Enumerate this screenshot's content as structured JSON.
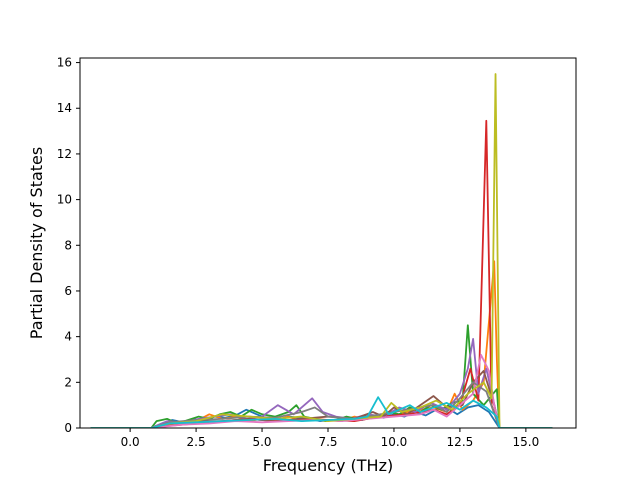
{
  "chart_data": {
    "type": "line",
    "title": "",
    "xlabel": "Frequency (THz)",
    "ylabel": "Partial Density of States",
    "xlim": [
      -1.9,
      16.9
    ],
    "ylim": [
      0,
      16.2
    ],
    "xticks": [
      0.0,
      2.5,
      5.0,
      7.5,
      10.0,
      12.5,
      15.0
    ],
    "xtick_labels": [
      "0.0",
      "2.5",
      "5.0",
      "7.5",
      "10.0",
      "12.5",
      "15.0"
    ],
    "yticks": [
      0,
      2,
      4,
      6,
      8,
      10,
      12,
      14,
      16
    ],
    "ytick_labels": [
      "0",
      "2",
      "4",
      "6",
      "8",
      "10",
      "12",
      "14",
      "16"
    ],
    "grid": false,
    "legend": "none",
    "series": [
      {
        "color": "#1f77b4",
        "x": [
          -1.5,
          0.8,
          1.2,
          1.6,
          2.0,
          2.4,
          2.8,
          3.2,
          3.6,
          4.0,
          4.4,
          4.8,
          5.2,
          5.6,
          6.0,
          6.4,
          6.8,
          7.2,
          7.6,
          8.0,
          8.4,
          8.8,
          9.2,
          9.6,
          10.0,
          10.4,
          10.8,
          11.2,
          11.6,
          12.0,
          12.4,
          12.8,
          13.2,
          13.6,
          14.0,
          16.0
        ],
        "y": [
          0,
          0,
          0.2,
          0.35,
          0.25,
          0.4,
          0.3,
          0.5,
          0.45,
          0.55,
          0.8,
          0.6,
          0.4,
          0.3,
          0.5,
          0.45,
          0.4,
          0.3,
          0.35,
          0.3,
          0.4,
          0.35,
          0.5,
          0.45,
          0.6,
          0.5,
          0.7,
          0.55,
          0.8,
          0.9,
          0.6,
          0.9,
          1.0,
          0.7,
          0,
          0
        ]
      },
      {
        "color": "#ff7f0e",
        "x": [
          -1.5,
          0.8,
          1.5,
          2.0,
          2.5,
          3.0,
          3.5,
          4.0,
          4.5,
          5.0,
          5.5,
          6.0,
          6.5,
          7.0,
          7.5,
          8.0,
          8.5,
          9.0,
          9.5,
          10.0,
          10.5,
          11.0,
          11.5,
          12.0,
          12.3,
          12.6,
          13.0,
          13.4,
          13.8,
          13.9,
          14.0,
          16.0
        ],
        "y": [
          0,
          0,
          0.15,
          0.2,
          0.3,
          0.6,
          0.4,
          0.5,
          0.3,
          0.4,
          0.35,
          0.5,
          0.3,
          0.4,
          0.35,
          0.3,
          0.5,
          0.4,
          0.6,
          0.5,
          0.7,
          0.8,
          0.9,
          0.7,
          1.5,
          0.8,
          1.2,
          2.0,
          7.3,
          3.0,
          0,
          0
        ]
      },
      {
        "color": "#2ca02c",
        "x": [
          -1.5,
          0.8,
          1.0,
          1.4,
          1.8,
          2.2,
          2.6,
          3.0,
          3.4,
          3.8,
          4.2,
          4.6,
          5.0,
          5.5,
          6.0,
          6.3,
          6.6,
          7.0,
          7.4,
          7.8,
          8.2,
          8.6,
          9.0,
          9.4,
          9.8,
          10.2,
          10.6,
          11.0,
          11.4,
          11.8,
          12.2,
          12.6,
          12.8,
          13.0,
          13.4,
          13.9,
          14.0,
          16.0
        ],
        "y": [
          0,
          0,
          0.3,
          0.4,
          0.2,
          0.35,
          0.5,
          0.4,
          0.6,
          0.7,
          0.5,
          0.8,
          0.6,
          0.5,
          0.7,
          1.0,
          0.5,
          0.4,
          0.3,
          0.35,
          0.5,
          0.4,
          0.6,
          0.5,
          0.7,
          0.6,
          0.9,
          0.7,
          1.0,
          0.8,
          1.1,
          1.2,
          4.5,
          1.5,
          1.0,
          1.7,
          0,
          0
        ]
      },
      {
        "color": "#d62728",
        "x": [
          -1.5,
          0.8,
          1.5,
          2.5,
          3.5,
          4.5,
          5.5,
          6.5,
          7.5,
          8.5,
          9.5,
          10.5,
          11.0,
          11.5,
          12.0,
          12.5,
          12.9,
          13.2,
          13.5,
          13.7,
          14.0,
          16.0
        ],
        "y": [
          0,
          0,
          0.1,
          0.2,
          0.3,
          0.4,
          0.3,
          0.4,
          0.35,
          0.3,
          0.5,
          0.6,
          0.7,
          0.8,
          0.6,
          1.0,
          2.6,
          1.2,
          13.45,
          1.0,
          0,
          0
        ]
      },
      {
        "color": "#9467bd",
        "x": [
          -1.5,
          0.8,
          1.4,
          2.0,
          2.6,
          3.2,
          3.8,
          4.4,
          5.0,
          5.6,
          6.2,
          6.9,
          7.3,
          7.8,
          8.4,
          9.0,
          9.6,
          10.2,
          10.8,
          11.4,
          12.0,
          12.5,
          12.8,
          13.0,
          13.2,
          13.5,
          14.0,
          16.0
        ],
        "y": [
          0,
          0,
          0.3,
          0.25,
          0.4,
          0.5,
          0.6,
          0.4,
          0.5,
          1.0,
          0.6,
          1.3,
          0.7,
          0.5,
          0.4,
          0.6,
          0.5,
          0.9,
          0.7,
          1.1,
          0.8,
          1.5,
          2.6,
          3.9,
          1.5,
          2.6,
          0,
          0
        ]
      },
      {
        "color": "#8c564b",
        "x": [
          -1.5,
          0.8,
          1.5,
          2.5,
          3.5,
          4.5,
          5.5,
          6.5,
          7.5,
          8.5,
          9.2,
          9.6,
          10.0,
          10.5,
          11.0,
          11.5,
          12.0,
          12.6,
          13.0,
          13.4,
          13.8,
          14.0,
          16.0
        ],
        "y": [
          0,
          0,
          0.2,
          0.3,
          0.3,
          0.4,
          0.3,
          0.4,
          0.5,
          0.4,
          0.7,
          0.5,
          0.9,
          0.6,
          1.0,
          1.4,
          0.9,
          1.0,
          2.0,
          2.5,
          1.0,
          0,
          0
        ]
      },
      {
        "color": "#e377c2",
        "x": [
          -1.5,
          0.8,
          2.0,
          3.0,
          4.0,
          5.0,
          6.0,
          7.0,
          8.0,
          9.0,
          10.0,
          11.0,
          11.5,
          12.0,
          12.5,
          13.0,
          13.3,
          13.6,
          13.8,
          14.0,
          16.0
        ],
        "y": [
          0,
          0,
          0.15,
          0.2,
          0.3,
          0.25,
          0.3,
          0.35,
          0.3,
          0.4,
          0.5,
          0.6,
          0.8,
          0.5,
          1.0,
          1.5,
          3.2,
          2.5,
          1.0,
          0,
          0
        ]
      },
      {
        "color": "#7f7f7f",
        "x": [
          -1.5,
          0.8,
          1.5,
          2.5,
          3.5,
          4.5,
          5.5,
          6.5,
          7.0,
          7.5,
          8.5,
          9.5,
          10.5,
          11.5,
          12.0,
          12.5,
          13.0,
          13.5,
          14.0,
          16.0
        ],
        "y": [
          0,
          0,
          0.25,
          0.35,
          0.4,
          0.5,
          0.45,
          0.7,
          0.9,
          0.5,
          0.4,
          0.6,
          0.8,
          1.0,
          0.7,
          1.3,
          2.0,
          1.6,
          0,
          0
        ]
      },
      {
        "color": "#bcbd22",
        "x": [
          -1.5,
          0.8,
          1.5,
          2.5,
          3.5,
          4.5,
          5.5,
          6.5,
          7.5,
          8.5,
          9.5,
          9.9,
          10.3,
          11.0,
          11.6,
          12.2,
          12.8,
          13.4,
          13.7,
          13.85,
          14.0,
          16.0
        ],
        "y": [
          0,
          0,
          0.2,
          0.3,
          0.6,
          0.5,
          0.4,
          0.5,
          0.3,
          0.4,
          0.5,
          1.1,
          0.7,
          0.9,
          1.2,
          0.8,
          1.5,
          2.0,
          1.3,
          15.5,
          0,
          0
        ]
      },
      {
        "color": "#17becf",
        "x": [
          -1.5,
          0.8,
          1.5,
          2.5,
          3.5,
          4.5,
          5.5,
          6.5,
          7.5,
          8.5,
          9.0,
          9.4,
          9.8,
          10.2,
          10.6,
          11.0,
          11.5,
          12.0,
          12.5,
          13.0,
          13.5,
          13.9,
          14.0,
          16.0
        ],
        "y": [
          0,
          0,
          0.2,
          0.25,
          0.3,
          0.35,
          0.4,
          0.3,
          0.35,
          0.4,
          0.5,
          1.35,
          0.6,
          0.8,
          1.0,
          0.7,
          0.9,
          1.1,
          0.8,
          1.2,
          0.9,
          0.5,
          0,
          0
        ]
      }
    ]
  }
}
